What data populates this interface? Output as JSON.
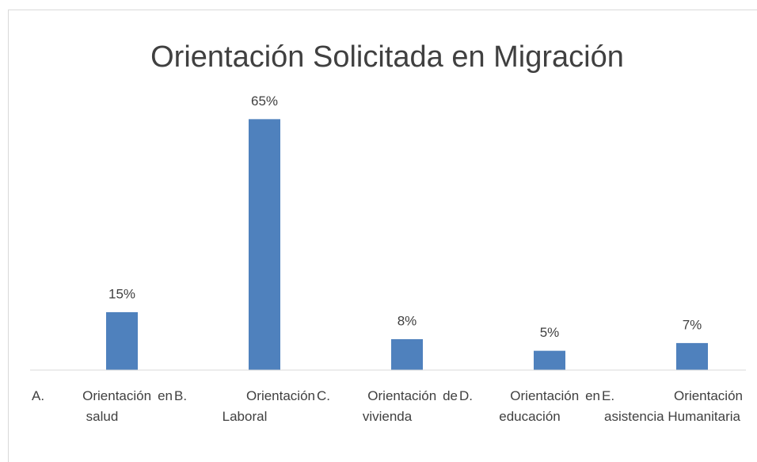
{
  "chart_data": {
    "type": "bar",
    "title": "Orientación Solicitada en Migración",
    "categories": [
      "A.      Orientación en salud",
      "B.      Orientación Laboral",
      "C.      Orientación de vivienda",
      "D.      Orientación en educación",
      "E.      Orientación asistencia Humanitaria"
    ],
    "values": [
      15,
      65,
      8,
      5,
      7
    ],
    "value_labels": [
      "15%",
      "65%",
      "8%",
      "5%",
      "7%"
    ],
    "color": "#4f81bd",
    "ylim": [
      0,
      70
    ]
  }
}
